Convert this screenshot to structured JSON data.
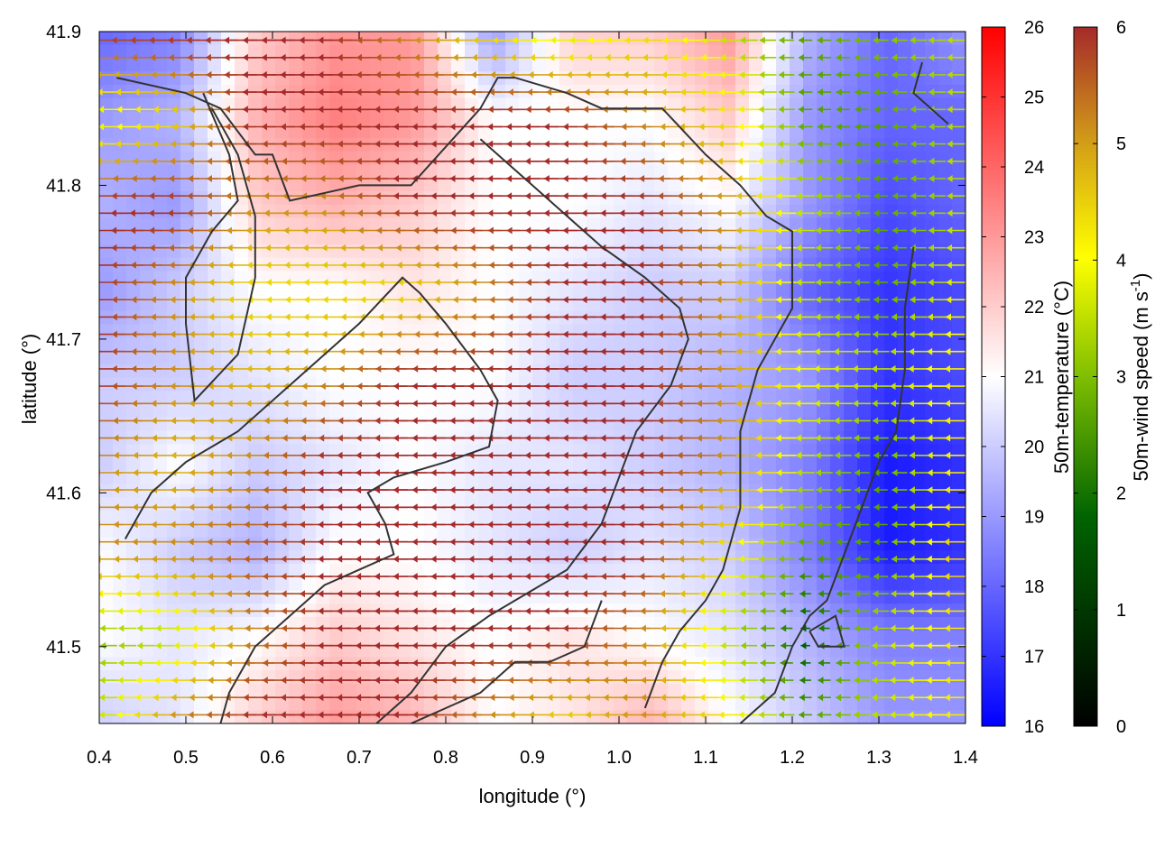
{
  "chart_data": {
    "type": "heatmap",
    "title": "",
    "xlabel": "longitude (°)",
    "ylabel": "latitude (°)",
    "xlim": [
      0.4,
      1.4
    ],
    "ylim": [
      41.45,
      41.9
    ],
    "x_ticks": [
      "0.4",
      "0.5",
      "0.6",
      "0.7",
      "0.8",
      "0.9",
      "1.0",
      "1.1",
      "1.2",
      "1.3",
      "1.4"
    ],
    "y_ticks": [
      "41.5",
      "41.6",
      "41.7",
      "41.8",
      "41.9"
    ],
    "temperature_colorbar": {
      "label": "50m-temperature (°C)",
      "range": [
        16,
        26
      ],
      "ticks": [
        "16",
        "17",
        "18",
        "19",
        "20",
        "21",
        "22",
        "23",
        "24",
        "25",
        "26"
      ],
      "colors": [
        "#0000ff",
        "#ffffff",
        "#ff0000"
      ]
    },
    "wind_colorbar": {
      "label": "50m-wind speed (m s",
      "label_superscript": "-1",
      "label_end": ")",
      "range": [
        0,
        6
      ],
      "ticks": [
        "0",
        "1",
        "2",
        "3",
        "4",
        "5",
        "6"
      ],
      "colors": [
        "#000000",
        "#006400",
        "#7fbf00",
        "#ffff00",
        "#d4a017",
        "#a52a2a"
      ]
    },
    "temperature_field": [
      [
        18,
        18.5,
        22,
        23,
        23,
        19,
        22,
        22,
        23,
        19.5,
        18,
        19
      ],
      [
        19,
        19.5,
        22.5,
        23.5,
        23,
        21,
        21,
        21,
        22,
        19,
        18,
        18
      ],
      [
        19.5,
        19,
        22,
        22.5,
        22,
        21,
        21,
        20.5,
        21,
        19,
        17.5,
        18
      ],
      [
        19,
        20,
        21,
        21,
        21.5,
        21,
        20.5,
        20,
        20,
        18,
        17,
        17.5
      ],
      [
        20,
        20,
        20.5,
        21,
        21,
        21,
        20,
        20,
        19.5,
        19,
        17,
        17.5
      ],
      [
        20,
        21,
        20,
        20.5,
        21,
        20.5,
        20.5,
        20,
        19.5,
        18.5,
        16.5,
        17
      ],
      [
        21,
        20,
        19.5,
        21,
        21,
        20.5,
        20,
        20.5,
        20,
        18.5,
        16.5,
        17
      ],
      [
        21,
        20.5,
        21,
        22,
        21.5,
        21,
        21.5,
        21,
        20.5,
        19.5,
        18.5,
        18.5
      ],
      [
        20,
        20.5,
        22,
        23,
        22.5,
        21,
        21.5,
        22.5,
        21,
        20,
        19,
        19
      ]
    ],
    "wind_speed_field": [
      [
        6,
        6,
        6,
        6,
        5,
        4,
        3,
        4,
        3,
        2,
        2.5,
        3
      ],
      [
        3,
        4,
        6,
        6,
        6,
        6,
        6,
        5,
        4,
        2,
        2,
        3
      ],
      [
        6,
        6,
        5,
        5,
        6,
        6,
        6,
        6,
        5,
        3,
        2,
        3
      ],
      [
        6,
        5,
        4,
        4,
        4,
        5,
        6,
        6,
        5,
        3,
        2,
        3.5
      ],
      [
        6,
        5,
        4.5,
        5,
        6,
        6,
        6,
        6,
        5,
        3.5,
        3,
        4
      ],
      [
        5,
        4.5,
        5,
        6,
        6,
        6,
        6,
        6,
        5,
        3,
        2,
        4
      ],
      [
        5,
        5,
        5.5,
        6,
        6,
        6,
        6,
        6,
        4,
        2,
        2,
        4.5
      ],
      [
        2.5,
        3,
        5,
        6,
        6,
        6,
        6,
        5,
        3,
        1,
        3,
        4
      ],
      [
        3,
        5,
        6,
        6,
        6,
        5,
        4,
        5,
        4,
        2,
        3,
        4
      ]
    ],
    "wind_direction_deg": 180,
    "contour_lines": [
      [
        [
          0.42,
          41.87
        ],
        [
          0.5,
          41.86
        ],
        [
          0.54,
          41.85
        ],
        [
          0.58,
          41.82
        ],
        [
          0.6,
          41.82
        ],
        [
          0.62,
          41.79
        ],
        [
          0.7,
          41.8
        ],
        [
          0.76,
          41.8
        ],
        [
          0.84,
          41.85
        ],
        [
          0.86,
          41.87
        ],
        [
          0.88,
          41.87
        ],
        [
          0.94,
          41.86
        ],
        [
          0.98,
          41.85
        ],
        [
          1.05,
          41.85
        ],
        [
          1.1,
          41.82
        ],
        [
          1.14,
          41.8
        ],
        [
          1.17,
          41.78
        ],
        [
          1.2,
          41.77
        ],
        [
          1.2,
          41.72
        ],
        [
          1.16,
          41.68
        ],
        [
          1.14,
          41.64
        ],
        [
          1.14,
          41.59
        ],
        [
          1.12,
          41.55
        ],
        [
          1.1,
          41.53
        ],
        [
          1.07,
          41.51
        ],
        [
          1.05,
          41.49
        ],
        [
          1.03,
          41.46
        ]
      ],
      [
        [
          0.52,
          41.86
        ],
        [
          0.55,
          41.82
        ],
        [
          0.56,
          41.79
        ],
        [
          0.53,
          41.77
        ],
        [
          0.5,
          41.74
        ],
        [
          0.5,
          41.71
        ],
        [
          0.51,
          41.66
        ],
        [
          0.56,
          41.69
        ],
        [
          0.58,
          41.74
        ],
        [
          0.58,
          41.78
        ],
        [
          0.56,
          41.82
        ],
        [
          0.53,
          41.85
        ]
      ],
      [
        [
          0.43,
          41.57
        ],
        [
          0.46,
          41.6
        ],
        [
          0.5,
          41.62
        ],
        [
          0.56,
          41.64
        ],
        [
          0.64,
          41.68
        ],
        [
          0.7,
          41.71
        ],
        [
          0.75,
          41.74
        ],
        [
          0.77,
          41.73
        ],
        [
          0.8,
          41.71
        ],
        [
          0.84,
          41.68
        ],
        [
          0.86,
          41.66
        ],
        [
          0.85,
          41.63
        ],
        [
          0.8,
          41.62
        ],
        [
          0.74,
          41.61
        ],
        [
          0.71,
          41.6
        ],
        [
          0.73,
          41.58
        ],
        [
          0.74,
          41.56
        ],
        [
          0.7,
          41.55
        ],
        [
          0.66,
          41.54
        ],
        [
          0.62,
          41.52
        ],
        [
          0.58,
          41.5
        ],
        [
          0.55,
          41.47
        ],
        [
          0.54,
          41.45
        ]
      ],
      [
        [
          0.72,
          41.45
        ],
        [
          0.76,
          41.47
        ],
        [
          0.8,
          41.5
        ],
        [
          0.85,
          41.52
        ],
        [
          0.88,
          41.53
        ],
        [
          0.94,
          41.55
        ],
        [
          0.98,
          41.58
        ],
        [
          1.0,
          41.61
        ],
        [
          1.02,
          41.64
        ],
        [
          1.06,
          41.67
        ],
        [
          1.08,
          41.7
        ],
        [
          1.07,
          41.72
        ],
        [
          1.03,
          41.74
        ],
        [
          0.98,
          41.76
        ],
        [
          0.94,
          41.78
        ],
        [
          0.9,
          41.8
        ],
        [
          0.86,
          41.82
        ],
        [
          0.84,
          41.83
        ]
      ],
      [
        [
          0.76,
          41.45
        ],
        [
          0.8,
          41.46
        ],
        [
          0.84,
          41.47
        ],
        [
          0.88,
          41.49
        ],
        [
          0.92,
          41.49
        ],
        [
          0.96,
          41.5
        ],
        [
          0.98,
          41.53
        ]
      ],
      [
        [
          1.14,
          41.45
        ],
        [
          1.18,
          41.47
        ],
        [
          1.2,
          41.5
        ],
        [
          1.22,
          41.52
        ],
        [
          1.24,
          41.53
        ],
        [
          1.26,
          41.56
        ],
        [
          1.28,
          41.59
        ],
        [
          1.3,
          41.62
        ],
        [
          1.32,
          41.64
        ],
        [
          1.33,
          41.68
        ],
        [
          1.33,
          41.72
        ],
        [
          1.34,
          41.76
        ]
      ],
      [
        [
          1.22,
          41.51
        ],
        [
          1.25,
          41.52
        ],
        [
          1.26,
          41.5
        ],
        [
          1.23,
          41.5
        ],
        [
          1.22,
          41.51
        ]
      ],
      [
        [
          1.35,
          41.88
        ],
        [
          1.34,
          41.86
        ],
        [
          1.38,
          41.84
        ]
      ]
    ]
  }
}
